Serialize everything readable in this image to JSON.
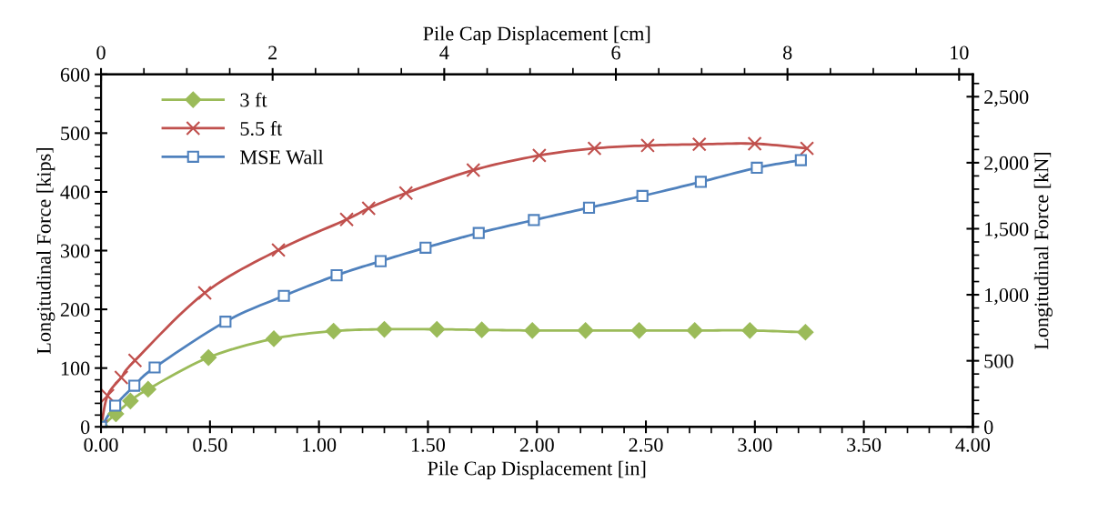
{
  "chart_data": {
    "type": "line",
    "xlabel": "Pile Cap Displacement [in]",
    "ylabel": "Longitudinal Force [kips]",
    "y2label": "Longitudinal Force [kN]",
    "x2label": "Pile Cap Displacement [cm]",
    "xlim": [
      0,
      4
    ],
    "xticks": [
      {
        "value": 0,
        "label": "0.00"
      },
      {
        "value": 0.5,
        "label": "0.50"
      },
      {
        "value": 1,
        "label": "1.00"
      },
      {
        "value": 1.5,
        "label": "1.50"
      },
      {
        "value": 2,
        "label": "2.00"
      },
      {
        "value": 2.5,
        "label": "2.50"
      },
      {
        "value": 3,
        "label": "3.00"
      },
      {
        "value": 3.5,
        "label": "3.50"
      },
      {
        "value": 4,
        "label": "4.00"
      }
    ],
    "ylim": [
      0,
      600
    ],
    "yticks": [
      0,
      100,
      200,
      300,
      400,
      500,
      600
    ],
    "x2lim": [
      0,
      10.16
    ],
    "x2ticks": [
      0,
      2,
      4,
      6,
      8,
      10
    ],
    "y2lim": [
      0,
      2668.9
    ],
    "y2ticks": [
      0,
      500,
      {
        "value": 1000,
        "label": "1,000"
      },
      {
        "value": 1500,
        "label": "1,500"
      },
      {
        "value": 2000,
        "label": "2,000"
      },
      {
        "value": 2500,
        "label": "2,500"
      }
    ],
    "grid": false,
    "legend": "top left",
    "line_style": "solid",
    "series": [
      {
        "name": "3 ft",
        "color": "#9bbb59",
        "marker": "diamond",
        "x": [
          0,
          0.068,
          0.135,
          0.216,
          0.493,
          0.793,
          1.067,
          1.3,
          1.541,
          1.747,
          1.979,
          2.223,
          2.469,
          2.724,
          2.977,
          3.232
        ],
        "values": [
          0,
          22,
          44,
          64,
          118,
          150,
          163,
          166,
          166,
          165,
          164,
          164,
          164,
          164,
          164,
          161
        ]
      },
      {
        "name": "5.5 ft",
        "color": "#c0504d",
        "marker": "cross",
        "x": [
          0,
          0.03,
          0.093,
          0.156,
          0.476,
          0.814,
          1.127,
          1.228,
          1.399,
          1.708,
          2.011,
          2.264,
          2.508,
          2.745,
          2.999,
          3.239
        ],
        "values": [
          0,
          53,
          84,
          113,
          228,
          301,
          353,
          372,
          398,
          437,
          462,
          474,
          479,
          481,
          482,
          474
        ]
      },
      {
        "name": "MSE Wall",
        "color": "#4f81bd",
        "marker": "square",
        "x": [
          0,
          0.065,
          0.153,
          0.246,
          0.571,
          0.839,
          1.081,
          1.283,
          1.489,
          1.733,
          1.986,
          2.239,
          2.484,
          2.752,
          3.009,
          3.211
        ],
        "values": [
          0,
          36,
          70,
          101,
          179,
          223,
          258,
          282,
          305,
          330,
          352,
          373,
          393,
          417,
          441,
          454
        ]
      }
    ]
  }
}
